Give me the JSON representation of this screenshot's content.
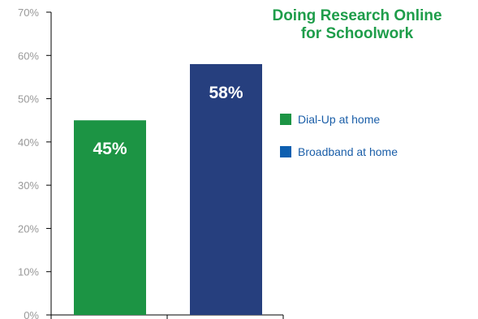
{
  "chart_data": {
    "type": "bar",
    "title_lines": [
      "Doing Research Online",
      "for Schoolwork"
    ],
    "categories": [
      "Dial-Up at home",
      "Broadband at home"
    ],
    "values": [
      45,
      58
    ],
    "value_labels": [
      "45%",
      "58%"
    ],
    "colors": [
      "#1c9444",
      "#263f7e"
    ],
    "legend_colors": [
      "#1c9444",
      "#0e5fb0"
    ],
    "ylim": [
      0,
      70
    ],
    "yticks": [
      0,
      10,
      20,
      30,
      40,
      50,
      60,
      70
    ],
    "ytick_labels": [
      "0%",
      "10%",
      "20%",
      "30%",
      "40%",
      "50%",
      "60%",
      "70%"
    ],
    "xlabel": "",
    "ylabel": "",
    "grid": false,
    "legend_position": "right"
  }
}
